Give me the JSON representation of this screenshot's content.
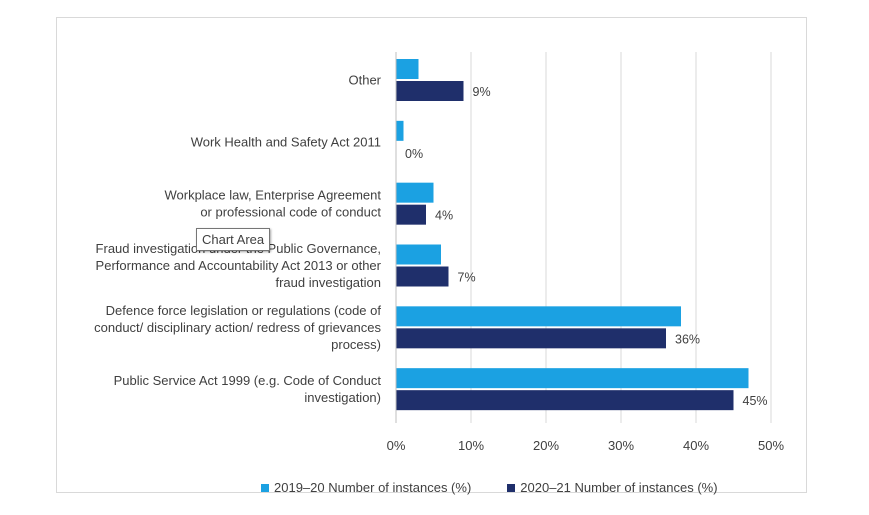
{
  "chart_data": {
    "type": "bar",
    "orientation": "horizontal",
    "categories": [
      [
        "Other"
      ],
      [
        "Work Health and Safety Act 2011"
      ],
      [
        "Workplace law, Enterprise Agreement",
        "or professional code of conduct"
      ],
      [
        "Fraud investigation under the Public Governance,",
        "Performance and Accountability Act 2013 or other",
        "fraud investigation"
      ],
      [
        "Defence force legislation or regulations (code of",
        "conduct/ disciplinary action/ redress of grievances",
        "process)"
      ],
      [
        "Public Service Act 1999 (e.g. Code of Conduct",
        "investigation)"
      ]
    ],
    "series": [
      {
        "name": "2019–20 Number of instances (%)",
        "values": [
          3,
          1,
          5,
          6,
          38,
          47
        ],
        "color": "#1ba1e2"
      },
      {
        "name": "2020–21 Number of instances (%)",
        "values": [
          9,
          0,
          4,
          7,
          36,
          45
        ],
        "color": "#1f2f6b",
        "data_labels": [
          "9%",
          "0%",
          "4%",
          "7%",
          "36%",
          "45%"
        ]
      }
    ],
    "xlim": [
      0,
      50
    ],
    "xticks": [
      "0%",
      "10%",
      "20%",
      "30%",
      "40%",
      "50%"
    ],
    "xtick_values": [
      0,
      10,
      20,
      30,
      40,
      50
    ],
    "grid": "vertical",
    "legend_position": "bottom"
  },
  "tooltip": {
    "text": "Chart Area"
  }
}
